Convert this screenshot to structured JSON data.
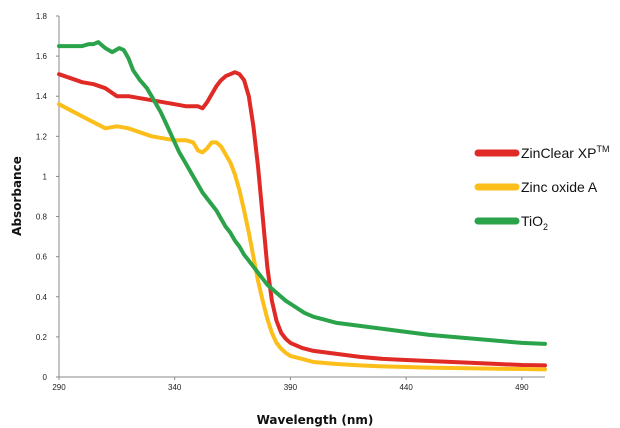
{
  "chart_data": {
    "type": "line",
    "title": "",
    "xlabel": "Wavelength (nm)",
    "ylabel": "Absorbance",
    "xlim": [
      290,
      500
    ],
    "ylim": [
      0,
      1.8
    ],
    "xticks": [
      290,
      340,
      390,
      440,
      490
    ],
    "yticks": [
      0,
      0.2,
      0.4,
      0.6,
      0.8,
      1,
      1.2,
      1.4,
      1.6,
      1.8
    ],
    "grid": false,
    "legend_position": "right",
    "series": [
      {
        "name": "ZinClear XP",
        "name_suffix": "TM",
        "color": "#e02a26",
        "points": [
          [
            290,
            1.51
          ],
          [
            295,
            1.49
          ],
          [
            300,
            1.47
          ],
          [
            305,
            1.46
          ],
          [
            310,
            1.44
          ],
          [
            315,
            1.4
          ],
          [
            320,
            1.4
          ],
          [
            325,
            1.39
          ],
          [
            330,
            1.38
          ],
          [
            335,
            1.37
          ],
          [
            340,
            1.36
          ],
          [
            345,
            1.35
          ],
          [
            350,
            1.35
          ],
          [
            352,
            1.34
          ],
          [
            354,
            1.37
          ],
          [
            356,
            1.41
          ],
          [
            358,
            1.45
          ],
          [
            360,
            1.48
          ],
          [
            362,
            1.5
          ],
          [
            364,
            1.51
          ],
          [
            366,
            1.52
          ],
          [
            368,
            1.51
          ],
          [
            370,
            1.48
          ],
          [
            372,
            1.4
          ],
          [
            374,
            1.25
          ],
          [
            376,
            1.05
          ],
          [
            378,
            0.8
          ],
          [
            380,
            0.55
          ],
          [
            382,
            0.38
          ],
          [
            384,
            0.28
          ],
          [
            386,
            0.22
          ],
          [
            388,
            0.19
          ],
          [
            390,
            0.17
          ],
          [
            395,
            0.145
          ],
          [
            400,
            0.13
          ],
          [
            410,
            0.115
          ],
          [
            420,
            0.1
          ],
          [
            430,
            0.09
          ],
          [
            440,
            0.085
          ],
          [
            450,
            0.08
          ],
          [
            460,
            0.075
          ],
          [
            470,
            0.07
          ],
          [
            480,
            0.065
          ],
          [
            490,
            0.06
          ],
          [
            500,
            0.058
          ]
        ]
      },
      {
        "name": "Zinc oxide A",
        "color": "#fbbe1a",
        "points": [
          [
            290,
            1.36
          ],
          [
            295,
            1.33
          ],
          [
            300,
            1.3
          ],
          [
            305,
            1.27
          ],
          [
            310,
            1.24
          ],
          [
            315,
            1.25
          ],
          [
            320,
            1.24
          ],
          [
            325,
            1.22
          ],
          [
            330,
            1.2
          ],
          [
            335,
            1.19
          ],
          [
            340,
            1.18
          ],
          [
            345,
            1.18
          ],
          [
            348,
            1.17
          ],
          [
            350,
            1.13
          ],
          [
            352,
            1.12
          ],
          [
            354,
            1.14
          ],
          [
            356,
            1.17
          ],
          [
            358,
            1.17
          ],
          [
            360,
            1.15
          ],
          [
            362,
            1.11
          ],
          [
            364,
            1.07
          ],
          [
            366,
            1.01
          ],
          [
            368,
            0.93
          ],
          [
            370,
            0.83
          ],
          [
            372,
            0.72
          ],
          [
            374,
            0.6
          ],
          [
            376,
            0.48
          ],
          [
            378,
            0.38
          ],
          [
            380,
            0.29
          ],
          [
            382,
            0.22
          ],
          [
            384,
            0.17
          ],
          [
            386,
            0.14
          ],
          [
            388,
            0.12
          ],
          [
            390,
            0.105
          ],
          [
            395,
            0.09
          ],
          [
            400,
            0.075
          ],
          [
            410,
            0.065
          ],
          [
            420,
            0.058
          ],
          [
            430,
            0.053
          ],
          [
            440,
            0.05
          ],
          [
            450,
            0.047
          ],
          [
            460,
            0.045
          ],
          [
            470,
            0.043
          ],
          [
            480,
            0.041
          ],
          [
            490,
            0.04
          ],
          [
            500,
            0.038
          ]
        ]
      },
      {
        "name": "TiO",
        "name_subscript": "2",
        "color": "#2ba34a",
        "points": [
          [
            290,
            1.65
          ],
          [
            295,
            1.65
          ],
          [
            300,
            1.65
          ],
          [
            303,
            1.66
          ],
          [
            305,
            1.66
          ],
          [
            307,
            1.67
          ],
          [
            310,
            1.64
          ],
          [
            313,
            1.62
          ],
          [
            316,
            1.64
          ],
          [
            318,
            1.63
          ],
          [
            320,
            1.59
          ],
          [
            322,
            1.53
          ],
          [
            325,
            1.48
          ],
          [
            328,
            1.44
          ],
          [
            330,
            1.4
          ],
          [
            332,
            1.36
          ],
          [
            334,
            1.32
          ],
          [
            336,
            1.27
          ],
          [
            338,
            1.22
          ],
          [
            340,
            1.17
          ],
          [
            342,
            1.12
          ],
          [
            344,
            1.08
          ],
          [
            346,
            1.04
          ],
          [
            348,
            1.0
          ],
          [
            350,
            0.96
          ],
          [
            352,
            0.92
          ],
          [
            354,
            0.89
          ],
          [
            356,
            0.86
          ],
          [
            358,
            0.83
          ],
          [
            360,
            0.79
          ],
          [
            362,
            0.75
          ],
          [
            364,
            0.72
          ],
          [
            366,
            0.68
          ],
          [
            368,
            0.65
          ],
          [
            370,
            0.61
          ],
          [
            372,
            0.58
          ],
          [
            374,
            0.55
          ],
          [
            376,
            0.52
          ],
          [
            378,
            0.49
          ],
          [
            380,
            0.46
          ],
          [
            384,
            0.42
          ],
          [
            388,
            0.38
          ],
          [
            392,
            0.35
          ],
          [
            396,
            0.32
          ],
          [
            400,
            0.3
          ],
          [
            405,
            0.285
          ],
          [
            410,
            0.27
          ],
          [
            420,
            0.255
          ],
          [
            430,
            0.24
          ],
          [
            440,
            0.225
          ],
          [
            450,
            0.21
          ],
          [
            460,
            0.2
          ],
          [
            470,
            0.19
          ],
          [
            480,
            0.18
          ],
          [
            490,
            0.17
          ],
          [
            500,
            0.165
          ]
        ]
      }
    ]
  }
}
